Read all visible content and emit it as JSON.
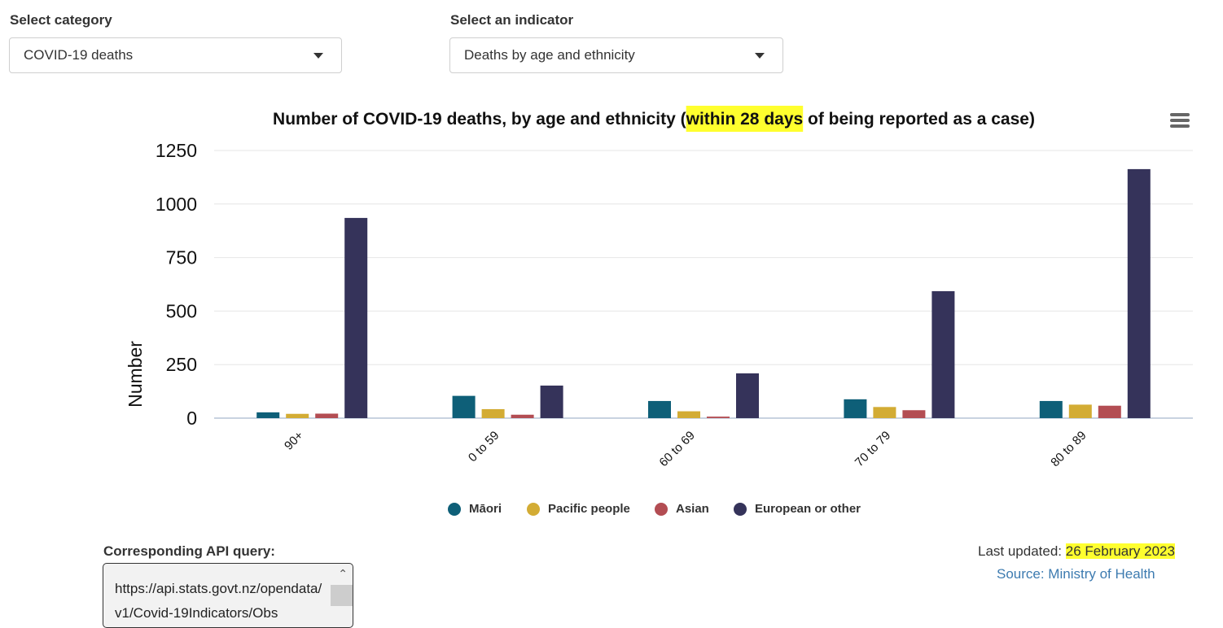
{
  "filters": {
    "category": {
      "label": "Select category",
      "value": "COVID-19 deaths"
    },
    "indicator": {
      "label": "Select an indicator",
      "value": "Deaths by age and ethnicity"
    }
  },
  "chart_menu_icon": "hamburger-menu-icon",
  "chart_data": {
    "type": "bar",
    "title_parts": [
      "Number of COVID-19 deaths, by age and ethnicity (",
      "within 28 days",
      " of being reported as a case)"
    ],
    "title": "Number of COVID-19 deaths, by age and ethnicity (within 28 days of being reported as a case)",
    "xlabel": "",
    "ylabel": "Number",
    "ylim": [
      0,
      1250
    ],
    "yticks": [
      0,
      250,
      500,
      750,
      1000,
      1250
    ],
    "grid": true,
    "legend_position": "bottom-center",
    "categories": [
      "90+",
      "0 to 59",
      "60 to 69",
      "70 to 79",
      "80 to 89"
    ],
    "series": [
      {
        "name": "Māori",
        "color": "#0e5f78",
        "values": [
          27,
          104,
          80,
          88,
          80
        ]
      },
      {
        "name": "Pacific people",
        "color": "#d3ac34",
        "values": [
          20,
          42,
          32,
          52,
          63
        ]
      },
      {
        "name": "Asian",
        "color": "#b34d53",
        "values": [
          21,
          16,
          7,
          37,
          58
        ]
      },
      {
        "name": "European or other",
        "color": "#35335a",
        "values": [
          935,
          152,
          209,
          593,
          1163
        ]
      }
    ]
  },
  "api": {
    "label": "Corresponding API query:",
    "text": "https://api.stats.govt.nz/opendata/v1/Covid-19Indicators/Obs"
  },
  "footer": {
    "updated_label": "Last updated: ",
    "updated_date": "26 February 2023",
    "source": "Source: Ministry of Health"
  },
  "highlight_color": "#ffff2e"
}
